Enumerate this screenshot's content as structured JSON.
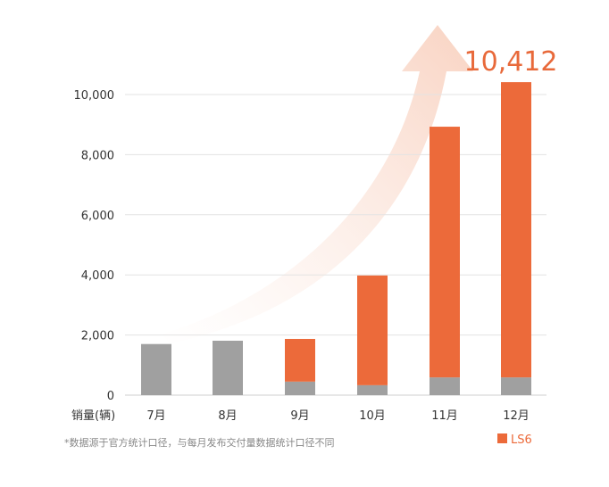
{
  "chart_data": {
    "type": "bar",
    "stacked": true,
    "categories": [
      "7月",
      "8月",
      "9月",
      "10月",
      "11月",
      "12月"
    ],
    "series": [
      {
        "values": [
          1700,
          1810,
          450,
          330,
          590,
          590
        ],
        "color": "#a0a0a0"
      },
      {
        "name": "LS6",
        "values": [
          0,
          0,
          1420,
          3650,
          8340,
          9822
        ],
        "color": "#ec6a3a"
      }
    ],
    "xlabel": "销量(辆)",
    "yticks": [
      "0",
      "2,000",
      "4,000",
      "6,000",
      "8,000",
      "10,000"
    ],
    "ylim": [
      0,
      10000
    ],
    "grid": true,
    "legend": "bottom-right",
    "annotation": "10,412",
    "footnote": "*数据源于官方统计口径，与每月发布交付量数据统计口径不同"
  }
}
